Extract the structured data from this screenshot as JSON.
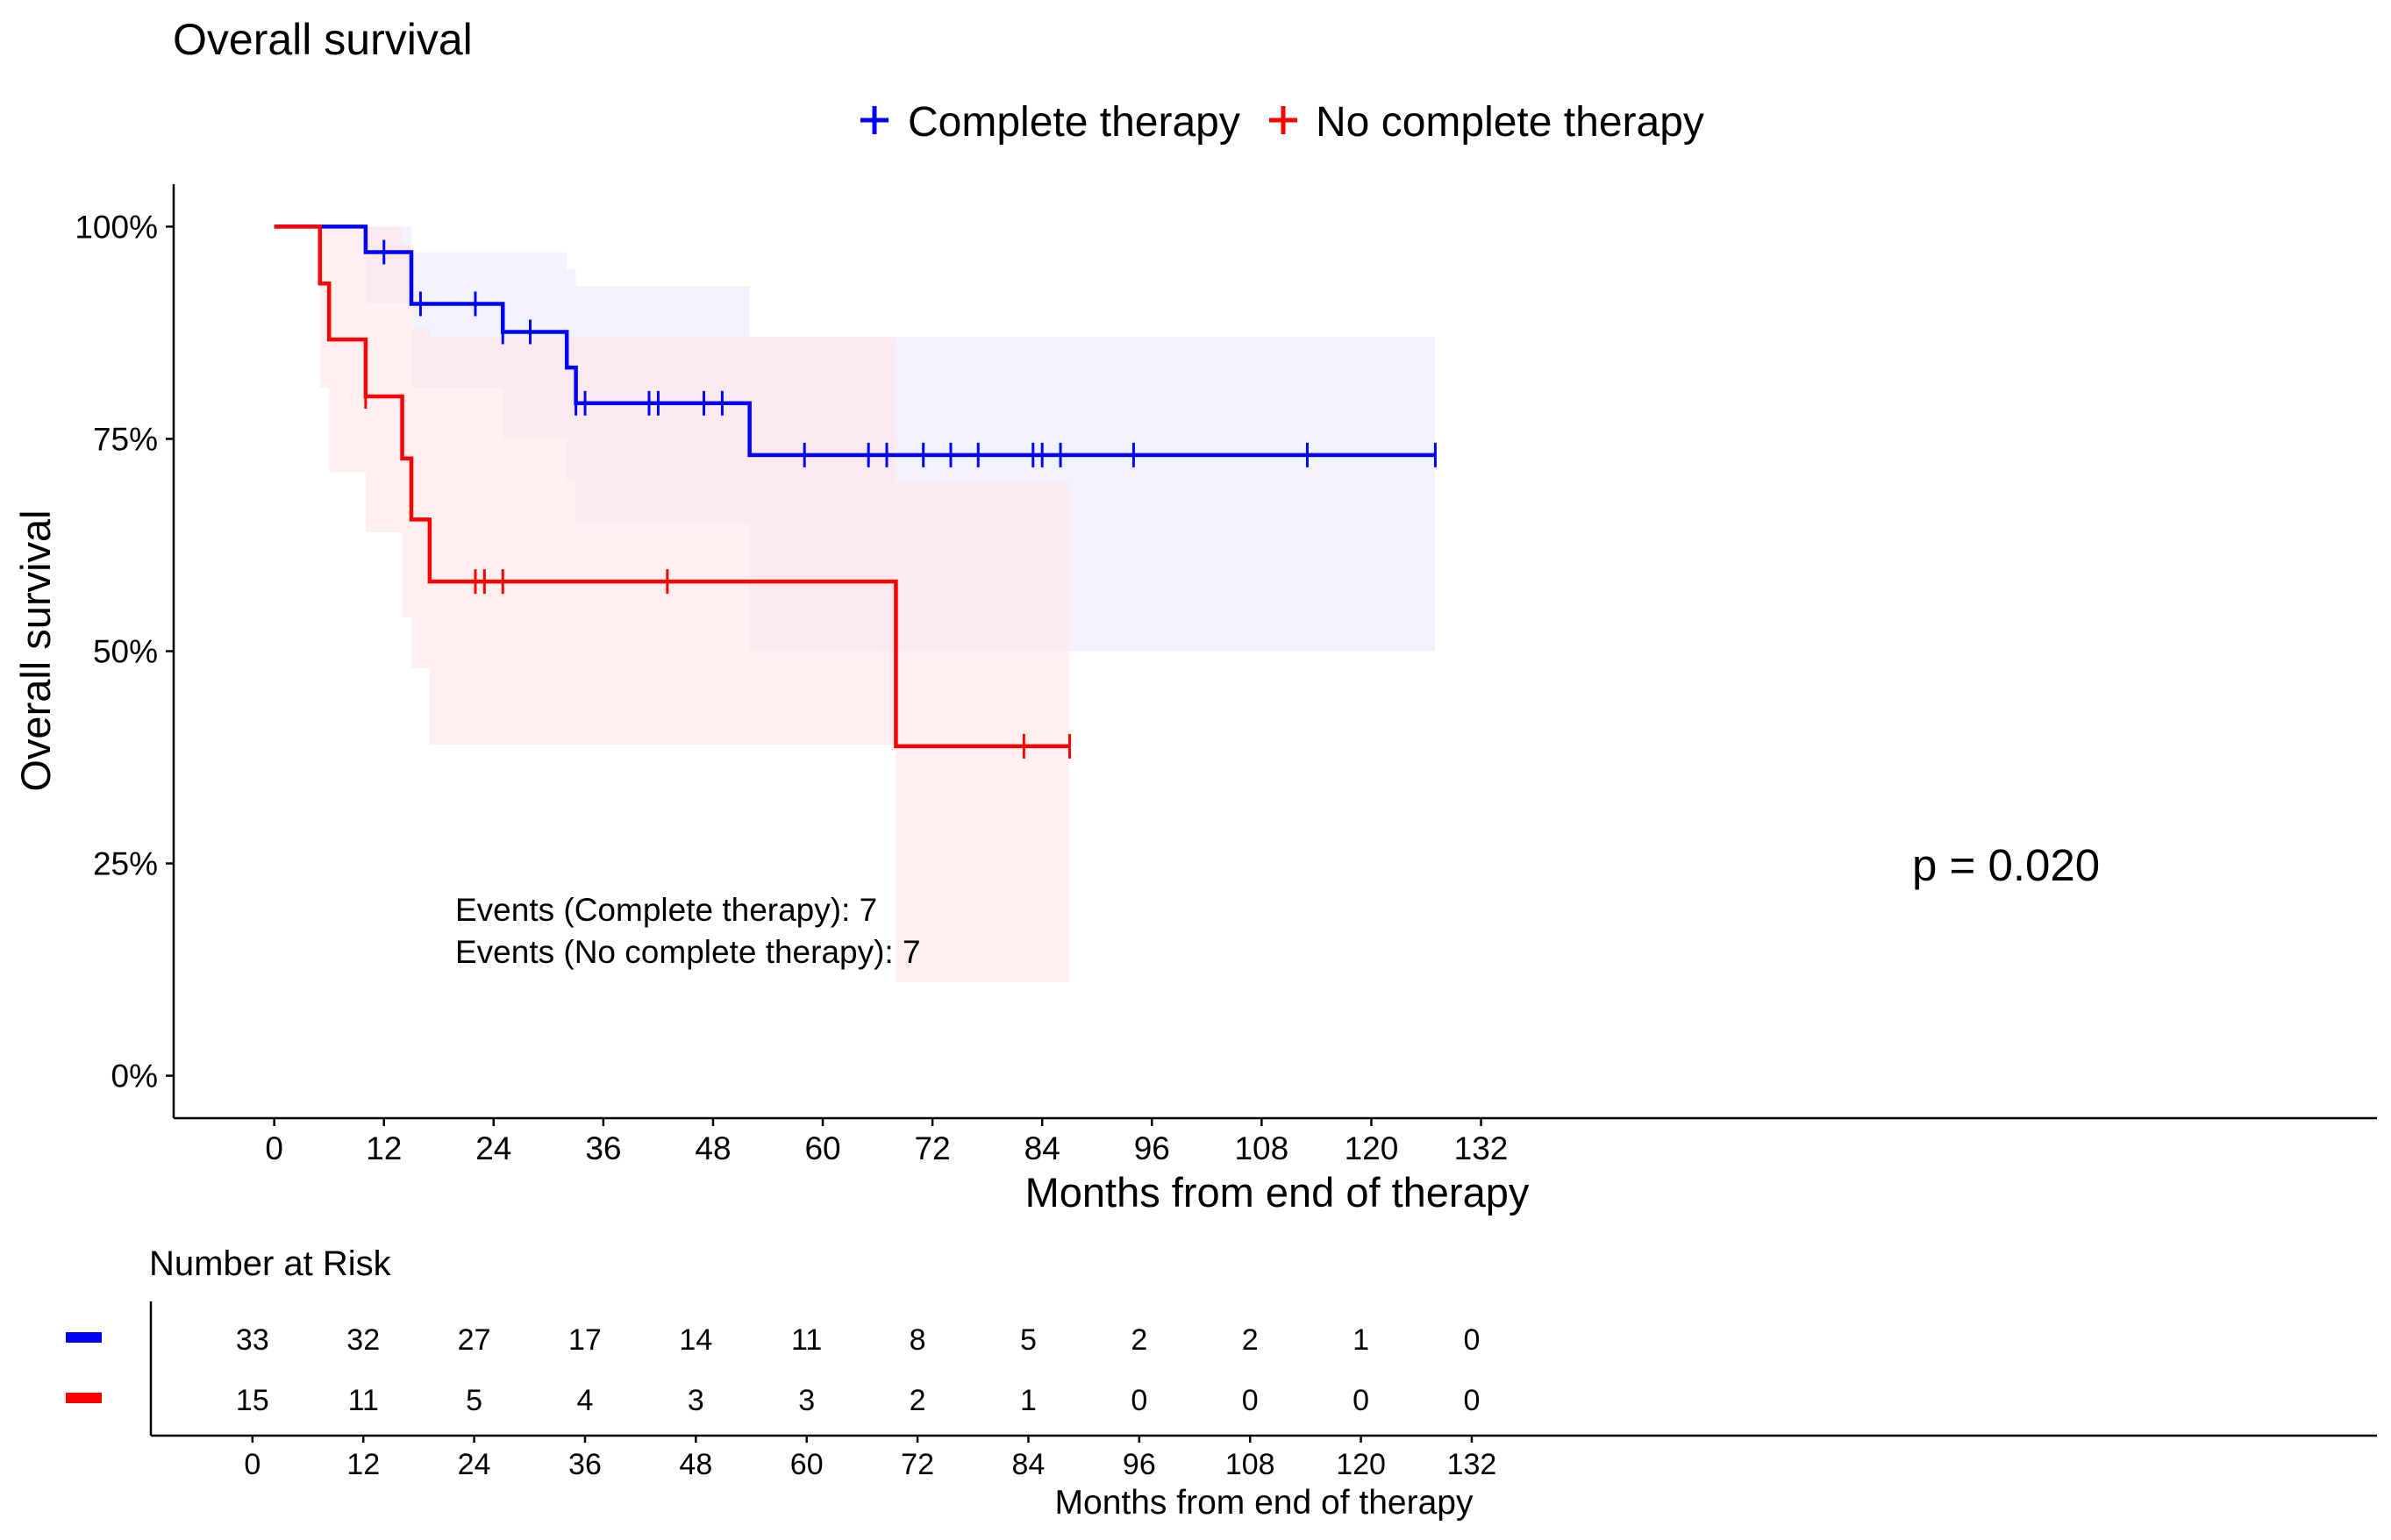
{
  "chart_data": {
    "type": "line",
    "subtype": "kaplan-meier",
    "title": "Overall survival",
    "xlabel": "Months from end of therapy",
    "ylabel": "Overall survival",
    "xlim": [
      -11,
      230
    ],
    "ylim": [
      -0.05,
      1.05
    ],
    "x_ticks": [
      0,
      12,
      24,
      36,
      48,
      60,
      72,
      84,
      96,
      108,
      120,
      132
    ],
    "y_ticks": [
      {
        "value": 0,
        "label": "0%"
      },
      {
        "value": 0.25,
        "label": "25%"
      },
      {
        "value": 0.5,
        "label": "50%"
      },
      {
        "value": 0.75,
        "label": "75%"
      },
      {
        "value": 1,
        "label": "100%"
      }
    ],
    "legend": {
      "position": "top",
      "entries": [
        "Complete therapy",
        "No complete therapy"
      ]
    },
    "p_value": "p = 0.020",
    "annotations": [
      "Events (Complete therapy): 7",
      "Events (No complete therapy): 7"
    ],
    "series": [
      {
        "name": "Complete therapy",
        "color": "#0000ff",
        "band_color": "#e9e9ff",
        "steps": [
          [
            0,
            1.0
          ],
          [
            10,
            0.97
          ],
          [
            15,
            0.909
          ],
          [
            25,
            0.876
          ],
          [
            32,
            0.834
          ],
          [
            33,
            0.792
          ],
          [
            52,
            0.731
          ],
          [
            127,
            0.731
          ]
        ],
        "band": [
          [
            0,
            1.0,
            1.0
          ],
          [
            10,
            0.91,
            1.0
          ],
          [
            15,
            0.81,
            0.97
          ],
          [
            25,
            0.75,
            0.97
          ],
          [
            32,
            0.7,
            0.95
          ],
          [
            33,
            0.65,
            0.93
          ],
          [
            52,
            0.5,
            0.87
          ],
          [
            127,
            0.5,
            0.87
          ]
        ],
        "censors": [
          12,
          16,
          22,
          25,
          28,
          33,
          34,
          41,
          42,
          47,
          49,
          58,
          65,
          67,
          71,
          74,
          77,
          83,
          84,
          86,
          94,
          113,
          127
        ]
      },
      {
        "name": "No complete therapy",
        "color": "#ff0000",
        "band_color": "#ffe4e4",
        "steps": [
          [
            0,
            1.0
          ],
          [
            5,
            0.933
          ],
          [
            6,
            0.867
          ],
          [
            10,
            0.8
          ],
          [
            14,
            0.727
          ],
          [
            15,
            0.655
          ],
          [
            17,
            0.582
          ],
          [
            68,
            0.388
          ],
          [
            87,
            0.388
          ]
        ],
        "band": [
          [
            0,
            1.0,
            1.0
          ],
          [
            5,
            0.81,
            1.0
          ],
          [
            6,
            0.71,
            1.0
          ],
          [
            10,
            0.64,
            1.0
          ],
          [
            14,
            0.54,
            0.98
          ],
          [
            15,
            0.48,
            0.88
          ],
          [
            17,
            0.39,
            0.87
          ],
          [
            68,
            0.11,
            0.7
          ],
          [
            87,
            0.11,
            0.7
          ]
        ],
        "censors": [
          10,
          22,
          23,
          25,
          43,
          82,
          87
        ]
      }
    ],
    "risk_table": {
      "title": "Number at Risk",
      "xlabel": "Months from end of therapy",
      "times": [
        0,
        12,
        24,
        36,
        48,
        60,
        72,
        84,
        96,
        108,
        120,
        132
      ],
      "rows": [
        {
          "name": "Complete therapy",
          "color": "#0000ff",
          "values": [
            33,
            32,
            27,
            17,
            14,
            11,
            8,
            5,
            2,
            2,
            1,
            0
          ]
        },
        {
          "name": "No complete therapy",
          "color": "#ff0000",
          "values": [
            15,
            11,
            5,
            4,
            3,
            3,
            2,
            1,
            0,
            0,
            0,
            0
          ]
        }
      ]
    }
  }
}
